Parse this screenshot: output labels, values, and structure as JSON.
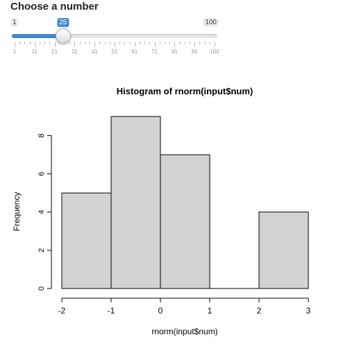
{
  "input": {
    "label": "Choose a number",
    "min": 1,
    "max": 100,
    "value": 25,
    "min_label": "1",
    "max_label": "100",
    "value_label": "25",
    "accent_color": "#428bca",
    "grid_labels": [
      "1",
      "11",
      "21",
      "31",
      "41",
      "51",
      "61",
      "71",
      "81",
      "91",
      "100"
    ]
  },
  "chart_data": {
    "type": "bar",
    "title": "Histogram of rnorm(input$num)",
    "xlabel": "rnorm(input$num)",
    "ylabel": "Frequency",
    "bins": [
      {
        "from": -2,
        "to": -1,
        "count": 5
      },
      {
        "from": -1,
        "to": 0,
        "count": 9
      },
      {
        "from": 0,
        "to": 1,
        "count": 7
      },
      {
        "from": 1,
        "to": 2,
        "count": 0
      },
      {
        "from": 2,
        "to": 3,
        "count": 4
      }
    ],
    "x_ticks": [
      "-2",
      "-1",
      "0",
      "1",
      "2",
      "3"
    ],
    "y_ticks": [
      "0",
      "2",
      "4",
      "6",
      "8"
    ],
    "xlim": [
      -2,
      3
    ],
    "ylim": [
      0,
      9
    ],
    "bar_color": "#d3d3d3",
    "grid": false
  }
}
